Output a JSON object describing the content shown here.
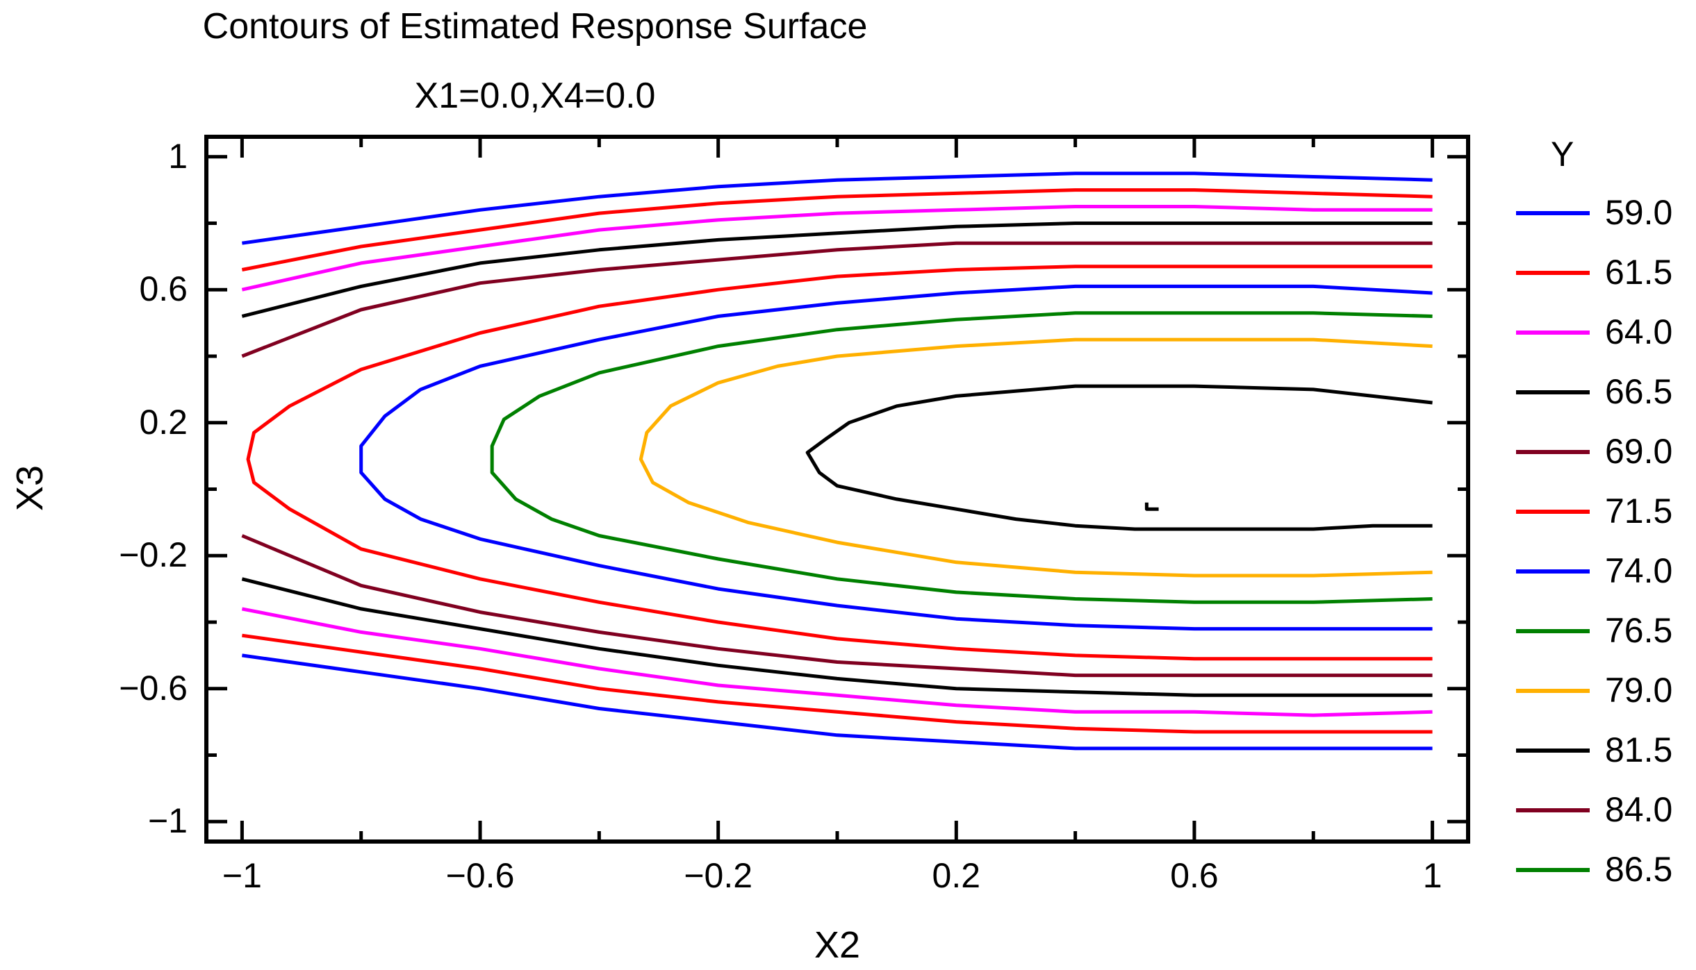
{
  "chart_data": {
    "type": "contour",
    "title": "Contours of Estimated Response Surface",
    "subtitle": "X1=0.0,X4=0.0",
    "xlabel": "X2",
    "ylabel": "X3",
    "xlim": [
      -1.06,
      1.06
    ],
    "ylim": [
      -1.06,
      1.06
    ],
    "xticks": [
      -1,
      -0.6,
      -0.2,
      0.2,
      0.6,
      1
    ],
    "xtick_labels": [
      "−1",
      "−0.6",
      "−0.2",
      "0.2",
      "0.6",
      "1"
    ],
    "yticks": [
      1,
      0.6,
      0.2,
      -0.2,
      -0.6,
      -1
    ],
    "ytick_labels": [
      "1",
      "0.6",
      "0.2",
      "−0.2",
      "−0.6",
      "−1"
    ],
    "legend_title": "Y",
    "levels": [
      {
        "label": "59.0",
        "color": "#0000ff",
        "paths": [
          [
            [
              -1,
              0.74
            ],
            [
              -0.8,
              0.79
            ],
            [
              -0.6,
              0.84
            ],
            [
              -0.4,
              0.88
            ],
            [
              -0.2,
              0.91
            ],
            [
              0,
              0.93
            ],
            [
              0.2,
              0.94
            ],
            [
              0.4,
              0.95
            ],
            [
              0.6,
              0.95
            ],
            [
              0.8,
              0.94
            ],
            [
              1,
              0.93
            ]
          ],
          [
            [
              -1,
              -0.5
            ],
            [
              -0.8,
              -0.55
            ],
            [
              -0.6,
              -0.6
            ],
            [
              -0.4,
              -0.66
            ],
            [
              -0.2,
              -0.7
            ],
            [
              0,
              -0.74
            ],
            [
              0.2,
              -0.76
            ],
            [
              0.4,
              -0.78
            ],
            [
              0.6,
              -0.78
            ],
            [
              0.8,
              -0.78
            ],
            [
              1,
              -0.78
            ]
          ]
        ]
      },
      {
        "label": "61.5",
        "color": "#ff0000",
        "paths": [
          [
            [
              -1,
              0.66
            ],
            [
              -0.8,
              0.73
            ],
            [
              -0.6,
              0.78
            ],
            [
              -0.4,
              0.83
            ],
            [
              -0.2,
              0.86
            ],
            [
              0,
              0.88
            ],
            [
              0.2,
              0.89
            ],
            [
              0.4,
              0.9
            ],
            [
              0.6,
              0.9
            ],
            [
              0.8,
              0.89
            ],
            [
              1,
              0.88
            ]
          ],
          [
            [
              -1,
              -0.44
            ],
            [
              -0.8,
              -0.49
            ],
            [
              -0.6,
              -0.54
            ],
            [
              -0.4,
              -0.6
            ],
            [
              -0.2,
              -0.64
            ],
            [
              0,
              -0.67
            ],
            [
              0.2,
              -0.7
            ],
            [
              0.4,
              -0.72
            ],
            [
              0.6,
              -0.73
            ],
            [
              0.8,
              -0.73
            ],
            [
              1,
              -0.73
            ]
          ]
        ]
      },
      {
        "label": "64.0",
        "color": "#ff00ff",
        "paths": [
          [
            [
              -1,
              0.6
            ],
            [
              -0.8,
              0.68
            ],
            [
              -0.6,
              0.73
            ],
            [
              -0.4,
              0.78
            ],
            [
              -0.2,
              0.81
            ],
            [
              0,
              0.83
            ],
            [
              0.2,
              0.84
            ],
            [
              0.4,
              0.85
            ],
            [
              0.6,
              0.85
            ],
            [
              0.8,
              0.84
            ],
            [
              1,
              0.84
            ]
          ],
          [
            [
              -1,
              -0.36
            ],
            [
              -0.8,
              -0.43
            ],
            [
              -0.6,
              -0.48
            ],
            [
              -0.4,
              -0.54
            ],
            [
              -0.2,
              -0.59
            ],
            [
              0,
              -0.62
            ],
            [
              0.2,
              -0.65
            ],
            [
              0.4,
              -0.67
            ],
            [
              0.6,
              -0.67
            ],
            [
              0.8,
              -0.68
            ],
            [
              1,
              -0.67
            ]
          ]
        ]
      },
      {
        "label": "66.5",
        "color": "#000000",
        "paths": [
          [
            [
              -1,
              0.52
            ],
            [
              -0.8,
              0.61
            ],
            [
              -0.6,
              0.68
            ],
            [
              -0.4,
              0.72
            ],
            [
              -0.2,
              0.75
            ],
            [
              0,
              0.77
            ],
            [
              0.2,
              0.79
            ],
            [
              0.4,
              0.8
            ],
            [
              0.6,
              0.8
            ],
            [
              0.8,
              0.8
            ],
            [
              1,
              0.8
            ]
          ],
          [
            [
              -1,
              -0.27
            ],
            [
              -0.8,
              -0.36
            ],
            [
              -0.6,
              -0.42
            ],
            [
              -0.4,
              -0.48
            ],
            [
              -0.2,
              -0.53
            ],
            [
              0,
              -0.57
            ],
            [
              0.2,
              -0.6
            ],
            [
              0.4,
              -0.61
            ],
            [
              0.6,
              -0.62
            ],
            [
              0.8,
              -0.62
            ],
            [
              1,
              -0.62
            ]
          ]
        ]
      },
      {
        "label": "69.0",
        "color": "#800020",
        "paths": [
          [
            [
              -1,
              0.4
            ],
            [
              -0.8,
              0.54
            ],
            [
              -0.6,
              0.62
            ],
            [
              -0.4,
              0.66
            ],
            [
              -0.2,
              0.69
            ],
            [
              0,
              0.72
            ],
            [
              0.2,
              0.74
            ],
            [
              0.4,
              0.74
            ],
            [
              0.6,
              0.74
            ],
            [
              0.8,
              0.74
            ],
            [
              1,
              0.74
            ]
          ],
          [
            [
              -1,
              -0.14
            ],
            [
              -0.8,
              -0.29
            ],
            [
              -0.6,
              -0.37
            ],
            [
              -0.4,
              -0.43
            ],
            [
              -0.2,
              -0.48
            ],
            [
              0,
              -0.52
            ],
            [
              0.2,
              -0.54
            ],
            [
              0.4,
              -0.56
            ],
            [
              0.6,
              -0.56
            ],
            [
              0.8,
              -0.56
            ],
            [
              1,
              -0.56
            ]
          ]
        ]
      },
      {
        "label": "71.5",
        "color": "#ff0000",
        "paths": [
          [
            [
              1,
              0.67
            ],
            [
              0.8,
              0.67
            ],
            [
              0.6,
              0.67
            ],
            [
              0.4,
              0.67
            ],
            [
              0.2,
              0.66
            ],
            [
              0,
              0.64
            ],
            [
              -0.2,
              0.6
            ],
            [
              -0.4,
              0.55
            ],
            [
              -0.6,
              0.47
            ],
            [
              -0.8,
              0.36
            ],
            [
              -0.92,
              0.25
            ],
            [
              -0.98,
              0.17
            ],
            [
              -0.99,
              0.09
            ],
            [
              -0.98,
              0.02
            ],
            [
              -0.92,
              -0.06
            ],
            [
              -0.8,
              -0.18
            ],
            [
              -0.6,
              -0.27
            ],
            [
              -0.4,
              -0.34
            ],
            [
              -0.2,
              -0.4
            ],
            [
              0,
              -0.45
            ],
            [
              0.2,
              -0.48
            ],
            [
              0.4,
              -0.5
            ],
            [
              0.6,
              -0.51
            ],
            [
              0.8,
              -0.51
            ],
            [
              1,
              -0.51
            ]
          ]
        ]
      },
      {
        "label": "74.0",
        "color": "#0000ff",
        "paths": [
          [
            [
              1,
              0.59
            ],
            [
              0.8,
              0.61
            ],
            [
              0.6,
              0.61
            ],
            [
              0.4,
              0.61
            ],
            [
              0.2,
              0.59
            ],
            [
              0,
              0.56
            ],
            [
              -0.2,
              0.52
            ],
            [
              -0.4,
              0.45
            ],
            [
              -0.6,
              0.37
            ],
            [
              -0.7,
              0.3
            ],
            [
              -0.76,
              0.22
            ],
            [
              -0.8,
              0.13
            ],
            [
              -0.8,
              0.05
            ],
            [
              -0.76,
              -0.03
            ],
            [
              -0.7,
              -0.09
            ],
            [
              -0.6,
              -0.15
            ],
            [
              -0.4,
              -0.23
            ],
            [
              -0.2,
              -0.3
            ],
            [
              0,
              -0.35
            ],
            [
              0.2,
              -0.39
            ],
            [
              0.4,
              -0.41
            ],
            [
              0.6,
              -0.42
            ],
            [
              0.8,
              -0.42
            ],
            [
              1,
              -0.42
            ]
          ]
        ]
      },
      {
        "label": "76.5",
        "color": "#008000",
        "paths": [
          [
            [
              1,
              0.52
            ],
            [
              0.8,
              0.53
            ],
            [
              0.6,
              0.53
            ],
            [
              0.4,
              0.53
            ],
            [
              0.2,
              0.51
            ],
            [
              0,
              0.48
            ],
            [
              -0.2,
              0.43
            ],
            [
              -0.4,
              0.35
            ],
            [
              -0.5,
              0.28
            ],
            [
              -0.56,
              0.21
            ],
            [
              -0.58,
              0.13
            ],
            [
              -0.58,
              0.05
            ],
            [
              -0.54,
              -0.03
            ],
            [
              -0.48,
              -0.09
            ],
            [
              -0.4,
              -0.14
            ],
            [
              -0.2,
              -0.21
            ],
            [
              0,
              -0.27
            ],
            [
              0.2,
              -0.31
            ],
            [
              0.4,
              -0.33
            ],
            [
              0.6,
              -0.34
            ],
            [
              0.8,
              -0.34
            ],
            [
              1,
              -0.33
            ]
          ]
        ]
      },
      {
        "label": "79.0",
        "color": "#ffb000",
        "paths": [
          [
            [
              1,
              0.43
            ],
            [
              0.8,
              0.45
            ],
            [
              0.6,
              0.45
            ],
            [
              0.4,
              0.45
            ],
            [
              0.2,
              0.43
            ],
            [
              0,
              0.4
            ],
            [
              -0.1,
              0.37
            ],
            [
              -0.2,
              0.32
            ],
            [
              -0.28,
              0.25
            ],
            [
              -0.32,
              0.17
            ],
            [
              -0.33,
              0.09
            ],
            [
              -0.31,
              0.02
            ],
            [
              -0.25,
              -0.04
            ],
            [
              -0.15,
              -0.1
            ],
            [
              0,
              -0.16
            ],
            [
              0.2,
              -0.22
            ],
            [
              0.4,
              -0.25
            ],
            [
              0.6,
              -0.26
            ],
            [
              0.8,
              -0.26
            ],
            [
              1,
              -0.25
            ]
          ]
        ]
      },
      {
        "label": "81.5",
        "color": "#000000",
        "paths": [
          [
            [
              1,
              0.26
            ],
            [
              0.8,
              0.3
            ],
            [
              0.6,
              0.31
            ],
            [
              0.4,
              0.31
            ],
            [
              0.2,
              0.28
            ],
            [
              0.1,
              0.25
            ],
            [
              0.02,
              0.2
            ],
            [
              -0.02,
              0.15
            ],
            [
              -0.05,
              0.11
            ],
            [
              -0.03,
              0.05
            ],
            [
              0,
              0.01
            ],
            [
              0.1,
              -0.03
            ],
            [
              0.2,
              -0.06
            ],
            [
              0.3,
              -0.09
            ],
            [
              0.4,
              -0.11
            ],
            [
              0.5,
              -0.12
            ],
            [
              0.6,
              -0.12
            ],
            [
              0.8,
              -0.12
            ],
            [
              0.9,
              -0.11
            ],
            [
              1,
              -0.11
            ]
          ],
          [
            [
              0.52,
              -0.04
            ],
            [
              0.52,
              -0.06
            ],
            [
              0.54,
              -0.06
            ]
          ]
        ]
      },
      {
        "label": "84.0",
        "color": "#800020",
        "paths": []
      },
      {
        "label": "86.5",
        "color": "#008000",
        "paths": []
      }
    ]
  }
}
